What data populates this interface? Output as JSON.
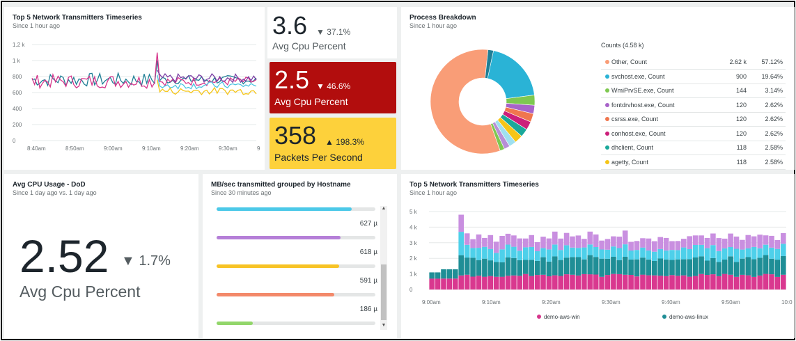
{
  "timeseries_top": {
    "title": "Top 5 Network Transmitters Timeseries",
    "subtitle": "Since 1 hour ago",
    "y_ticks": [
      "1.2 k",
      "1 k",
      "800",
      "600",
      "400",
      "200",
      "0"
    ],
    "x_ticks": [
      "8:40am",
      "8:50am",
      "9:00am",
      "9:10am",
      "9:20am",
      "9:30am",
      "9"
    ],
    "colors": [
      "#1f7f96",
      "#d6358b",
      "#7b3fa5",
      "#4cc4e0",
      "#f5c518"
    ]
  },
  "billboard_1": {
    "value": "3.6",
    "direction": "down",
    "delta": "37.1%",
    "label": "Avg Cpu Percent"
  },
  "billboard_2": {
    "value": "2.5",
    "direction": "down",
    "delta": "46.6%",
    "label": "Avg Cpu Percent",
    "bg": "#b20d0d"
  },
  "billboard_3": {
    "value": "358",
    "direction": "up",
    "delta": "198.3%",
    "label": "Packets Per Second",
    "bg": "#fdd13b"
  },
  "process": {
    "title": "Process Breakdown",
    "subtitle": "Since 1 hour ago",
    "legend_title": "Counts (4.58 k)",
    "rows": [
      {
        "name": "Other, Count",
        "count": "2.62 k",
        "pct": "57.12%",
        "color": "#f99d77"
      },
      {
        "name": "svchost.exe, Count",
        "count": "900",
        "pct": "19.64%",
        "color": "#2ab3d6"
      },
      {
        "name": "WmiPrvSE.exe, Count",
        "count": "144",
        "pct": "3.14%",
        "color": "#7ec850"
      },
      {
        "name": "fontdrvhost.exe, Count",
        "count": "120",
        "pct": "2.62%",
        "color": "#a863c9"
      },
      {
        "name": "csrss.exe, Count",
        "count": "120",
        "pct": "2.62%",
        "color": "#f0764e"
      },
      {
        "name": "conhost.exe, Count",
        "count": "120",
        "pct": "2.62%",
        "color": "#cc1f7a"
      },
      {
        "name": "dhclient, Count",
        "count": "118",
        "pct": "2.58%",
        "color": "#1aa89a"
      },
      {
        "name": "agetty, Count",
        "count": "118",
        "pct": "2.58%",
        "color": "#f5c518"
      }
    ],
    "donut_slices": [
      {
        "value": 57.12,
        "color": "#f99d77"
      },
      {
        "value": 19.64,
        "color": "#2ab3d6"
      },
      {
        "value": 3.14,
        "color": "#7ec850"
      },
      {
        "value": 2.62,
        "color": "#a863c9"
      },
      {
        "value": 2.62,
        "color": "#f0764e"
      },
      {
        "value": 2.62,
        "color": "#cc1f7a"
      },
      {
        "value": 2.58,
        "color": "#1aa89a"
      },
      {
        "value": 2.58,
        "color": "#f5c518"
      },
      {
        "value": 2.2,
        "color": "#9fe0ef"
      },
      {
        "value": 1.8,
        "color": "#b78fd6"
      },
      {
        "value": 1.4,
        "color": "#7ec850"
      },
      {
        "value": 1.68,
        "color": "#1f7f96"
      }
    ]
  },
  "avg_cpu_dod": {
    "title": "Avg CPU Usage - DoD",
    "subtitle": "Since 1 day ago vs. 1 day ago",
    "value": "2.52",
    "delta": "1.7%",
    "label": "Avg Cpu Percent"
  },
  "mbsec": {
    "title": "MB/sec transmitted grouped by Hostname",
    "subtitle": "Since 30 minutes ago",
    "bars": [
      {
        "value": "",
        "fill": 0.85,
        "color": "#4cc9e8"
      },
      {
        "value": "627 µ",
        "fill": 0.78,
        "color": "#b57fd8"
      },
      {
        "value": "618 µ",
        "fill": 0.77,
        "color": "#f7c325"
      },
      {
        "value": "591 µ",
        "fill": 0.74,
        "color": "#f3896a"
      },
      {
        "value": "186 µ",
        "fill": 0.23,
        "color": "#92d66a"
      }
    ]
  },
  "timeseries_bottom": {
    "title": "Top 5 Network Transmitters Timeseries",
    "subtitle": "Since 1 hour ago",
    "y_ticks": [
      "5 k",
      "4 k",
      "3 k",
      "2 k",
      "1 k",
      "0"
    ],
    "x_ticks": [
      "9:00am",
      "9:10am",
      "9:20am",
      "9:30am",
      "9:40am",
      "9:50am",
      "10:0"
    ],
    "legend": [
      {
        "name": "demo-aws-win",
        "color": "#d6358b"
      },
      {
        "name": "demo-aws-linux",
        "color": "#1f8e96"
      }
    ],
    "stack_colors": [
      "#d9388f",
      "#1f8e96",
      "#4ed0ea",
      "#c98fe0"
    ]
  }
}
